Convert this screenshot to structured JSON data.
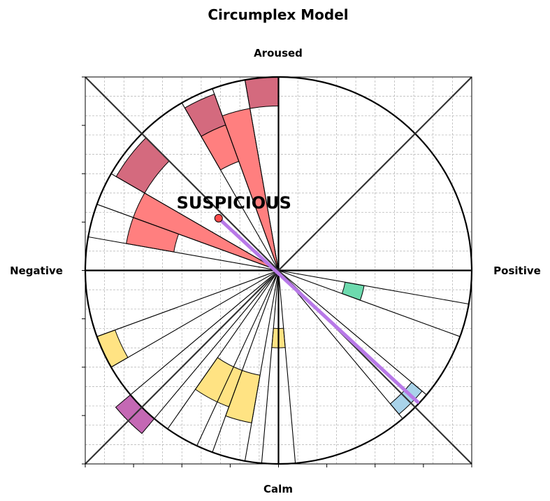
{
  "chart_data": {
    "type": "polar-bar",
    "title": "Circumplex Model",
    "axis_labels": {
      "top": "Aroused",
      "bottom": "Calm",
      "left": "Negative",
      "right": "Positive"
    },
    "x_range": [
      -1,
      1
    ],
    "y_range": [
      -1,
      1
    ],
    "grid": true,
    "annotation": {
      "text": "SUSPICIOUS",
      "point": [
        -0.31,
        0.27
      ],
      "pointer_end": [
        0.72,
        -0.68
      ]
    },
    "diagonals": true,
    "sectors": [
      {
        "start_deg": 90,
        "end_deg": 100,
        "inner": 0.85,
        "outer": 1.0,
        "color": "#d46a7e"
      },
      {
        "start_deg": 100,
        "end_deg": 110,
        "inner": 0.0,
        "outer": 0.85,
        "color": "#ff7f7f"
      },
      {
        "start_deg": 110,
        "end_deg": 120,
        "inner": 0.8,
        "outer": 0.97,
        "color": "#d46a7e"
      },
      {
        "start_deg": 110,
        "end_deg": 120,
        "inner": 0.6,
        "outer": 0.8,
        "color": "#ff7f7f"
      },
      {
        "start_deg": 120,
        "end_deg": 135,
        "inner": 0.0,
        "outer": 0.0,
        "color": "#ffffff"
      },
      {
        "start_deg": 135,
        "end_deg": 150,
        "inner": 0.8,
        "outer": 0.97,
        "color": "#d46a7e"
      },
      {
        "start_deg": 150,
        "end_deg": 160,
        "inner": 0.0,
        "outer": 0.8,
        "color": "#ff7f7f"
      },
      {
        "start_deg": 160,
        "end_deg": 170,
        "inner": 0.55,
        "outer": 0.8,
        "color": "#ff7f7f"
      },
      {
        "start_deg": 340,
        "end_deg": 350,
        "inner": 0.35,
        "outer": 0.45,
        "color": "#6ddaae"
      },
      {
        "start_deg": 310,
        "end_deg": 320,
        "inner": 0.9,
        "outer": 0.97,
        "color": "#a9d3ea"
      },
      {
        "start_deg": 265,
        "end_deg": 275,
        "inner": 0.3,
        "outer": 0.4,
        "color": "#ffe383"
      },
      {
        "start_deg": 250,
        "end_deg": 260,
        "inner": 0.55,
        "outer": 0.8,
        "color": "#ffe383"
      },
      {
        "start_deg": 235,
        "end_deg": 250,
        "inner": 0.55,
        "outer": 0.75,
        "color": "#ffe383"
      },
      {
        "start_deg": 200,
        "end_deg": 210,
        "inner": 0.9,
        "outer": 1.0,
        "color": "#ffe383"
      },
      {
        "start_deg": 220,
        "end_deg": 230,
        "inner": 1.0,
        "outer": 1.1,
        "color": "#c468b4"
      }
    ],
    "boundary_lines_deg": [
      90,
      100,
      110,
      120,
      135,
      150,
      160,
      170,
      340,
      350,
      310,
      320,
      265,
      275,
      250,
      260,
      235,
      200,
      210,
      220,
      230,
      245
    ]
  }
}
